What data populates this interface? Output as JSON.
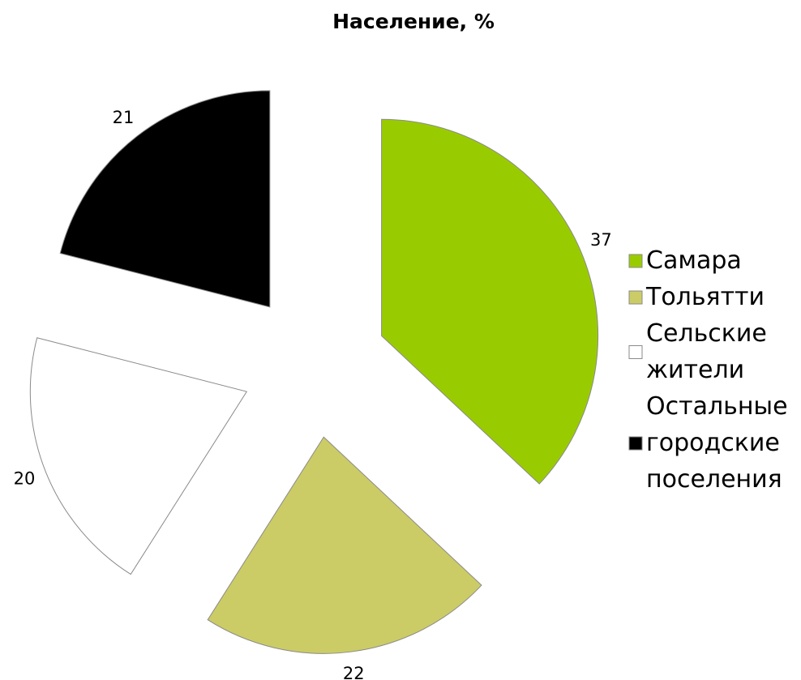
{
  "chart_data": {
    "type": "pie",
    "title": "Население, %",
    "categories": [
      "Самара",
      "Тольятти",
      "Сельские жители",
      "Остальные городские поселения"
    ],
    "values": [
      37,
      22,
      20,
      21
    ],
    "colors": [
      "#99cc00",
      "#cccc66",
      "#ffffff",
      "#000000"
    ],
    "legend": "right"
  }
}
